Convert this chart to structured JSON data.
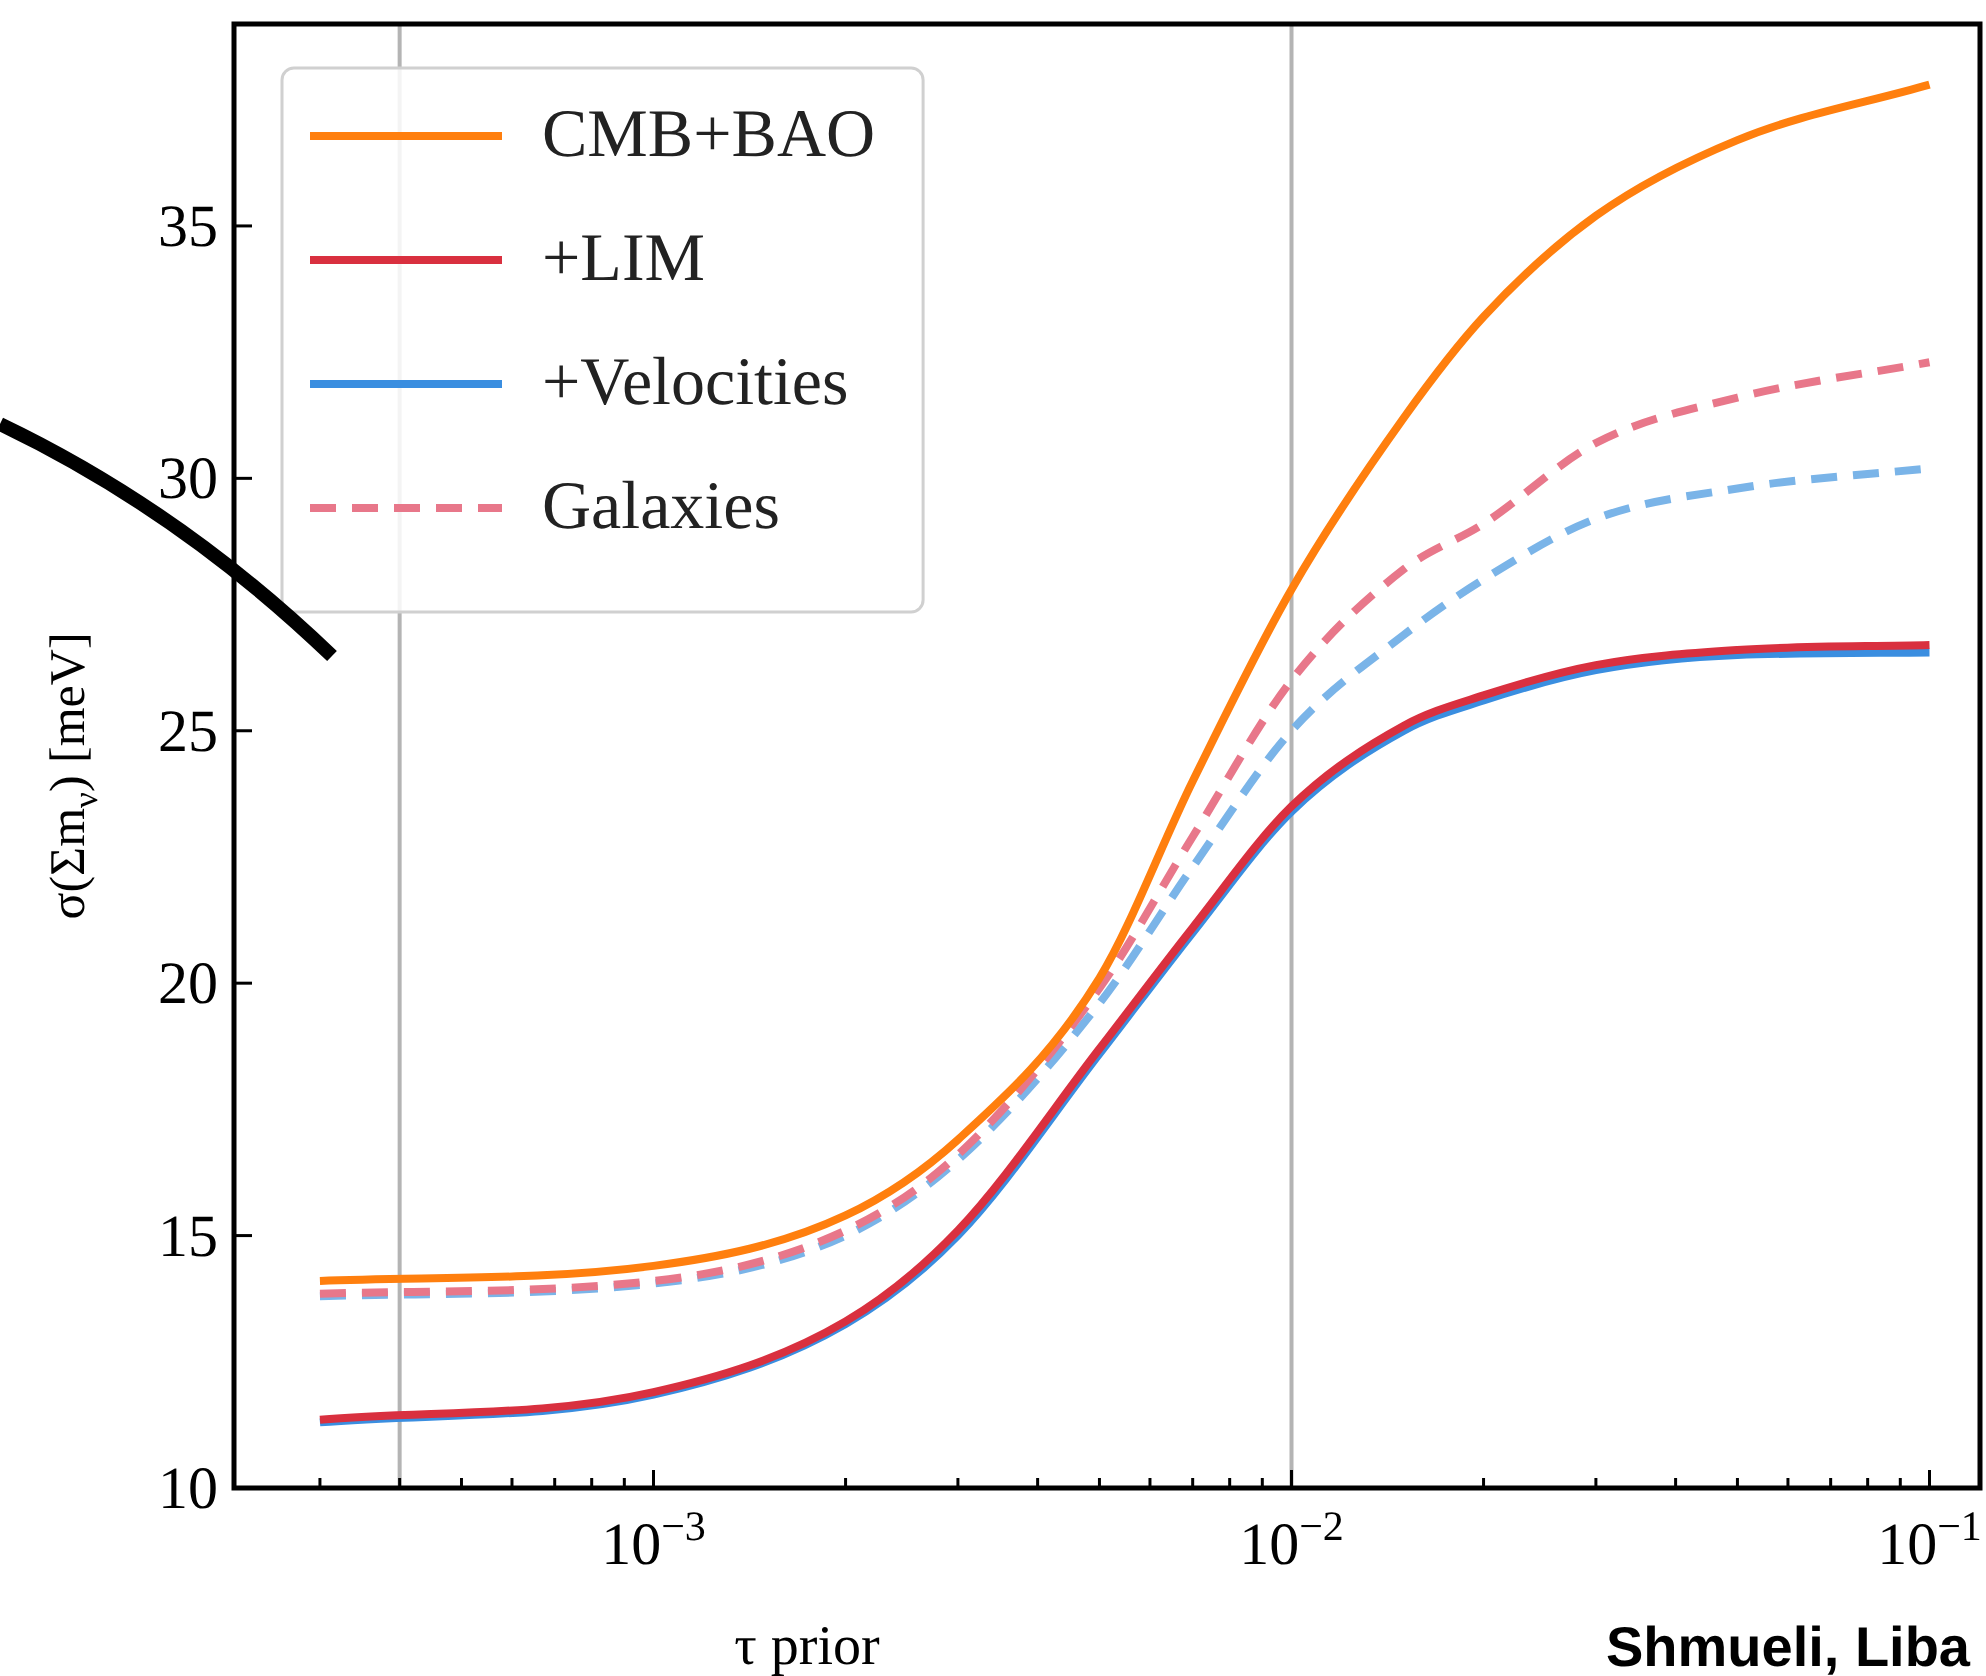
{
  "chart_data": {
    "type": "line",
    "xlabel": "τ prior",
    "ylabel": "σ(Σm$_{ν}$) [meV]",
    "log": "x",
    "xlim": [
      0.00022,
      0.12
    ],
    "xticks": [
      {
        "value": 0.0003,
        "label": null
      },
      {
        "value": 0.0004,
        "label": null
      },
      {
        "value": 0.0005,
        "label": null
      },
      {
        "value": 0.0006,
        "label": null
      },
      {
        "value": 0.0007,
        "label": null
      },
      {
        "value": 0.0008,
        "label": null
      },
      {
        "value": 0.0009,
        "label": null
      },
      {
        "value": 0.001,
        "label": "10$^{−3}$"
      },
      {
        "value": 0.002,
        "label": null
      },
      {
        "value": 0.003,
        "label": null
      },
      {
        "value": 0.004,
        "label": null
      },
      {
        "value": 0.005,
        "label": null
      },
      {
        "value": 0.006,
        "label": null
      },
      {
        "value": 0.007,
        "label": null
      },
      {
        "value": 0.008,
        "label": null
      },
      {
        "value": 0.009,
        "label": null
      },
      {
        "value": 0.01,
        "label": "10$^{−2}$"
      },
      {
        "value": 0.02,
        "label": null
      },
      {
        "value": 0.03,
        "label": null
      },
      {
        "value": 0.04,
        "label": null
      },
      {
        "value": 0.05,
        "label": null
      },
      {
        "value": 0.06,
        "label": null
      },
      {
        "value": 0.07,
        "label": null
      },
      {
        "value": 0.08,
        "label": null
      },
      {
        "value": 0.09,
        "label": null
      },
      {
        "value": 0.1,
        "label": "10$^{−1}$"
      }
    ],
    "ylim": [
      10,
      39
    ],
    "yticks": [
      10,
      15,
      20,
      25,
      30,
      35
    ],
    "x": [
      0.0003,
      0.001,
      0.002,
      0.003,
      0.005,
      0.007,
      0.01,
      0.015,
      0.02,
      0.03,
      0.05,
      0.1
    ],
    "marker": "none",
    "legend": "top left",
    "series": [
      {
        "name": "CMB+BAO",
        "color": "#ff7f0e",
        "values": [
          14.1,
          14.4,
          15.4,
          16.9,
          20.1,
          24.0,
          27.8,
          31.2,
          33.2,
          35.2,
          36.7,
          37.8
        ]
      },
      {
        "name": "+LIM",
        "color": "#d9303f",
        "values": [
          11.35,
          11.9,
          13.3,
          15.1,
          18.7,
          21.1,
          23.5,
          25.1,
          25.7,
          26.3,
          26.6,
          26.7
        ]
      },
      {
        "name": "+Velocities",
        "color": "#3a8ee0",
        "values": [
          11.3,
          11.85,
          13.25,
          15.0,
          18.6,
          21.0,
          23.4,
          25.0,
          25.6,
          26.2,
          26.5,
          26.55
        ]
      },
      {
        "name": "Galaxies",
        "color": "#e8778a",
        "line_style": "dashed",
        "values": [
          13.85,
          14.1,
          15.1,
          16.6,
          19.9,
          22.9,
          26.0,
          28.2,
          29.1,
          30.7,
          31.6,
          32.3
        ]
      },
      {
        "color": "#7ab4e8",
        "line_style": "dashed",
        "values": [
          13.8,
          14.05,
          15.0,
          16.5,
          19.6,
          22.3,
          25.0,
          26.9,
          28.0,
          29.2,
          29.8,
          30.2
        ]
      }
    ],
    "ref_lines": [
      {
        "axis": "x",
        "value": 0.0004,
        "color": "#b4b4b4"
      },
      {
        "axis": "x",
        "value": 0.01,
        "color": "#b4b4b4"
      }
    ],
    "annotations": [
      "Shmueli, Liba"
    ]
  }
}
